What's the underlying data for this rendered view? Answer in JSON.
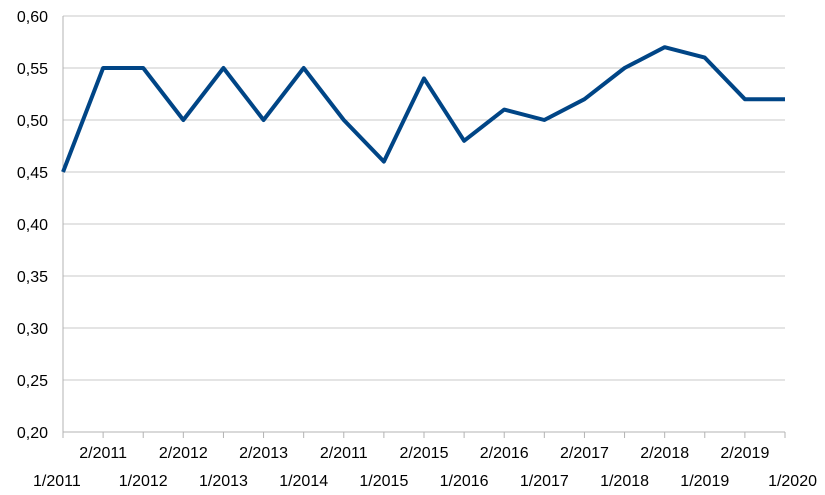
{
  "chart_data": {
    "type": "line",
    "title": "",
    "xlabel": "",
    "ylabel": "",
    "categories": [
      "1/2011",
      "2/2011",
      "1/2012",
      "2/2012",
      "1/2013",
      "2/2013",
      "1/2014",
      "2/2011",
      "1/2015",
      "2/2015",
      "1/2016",
      "2/2016",
      "1/2017",
      "2/2017",
      "1/2018",
      "2/2018",
      "1/2019",
      "2/2019",
      "1/2020"
    ],
    "series": [
      {
        "values": [
          0.45,
          0.55,
          0.55,
          0.5,
          0.55,
          0.5,
          0.55,
          0.5,
          0.46,
          0.54,
          0.48,
          0.51,
          0.5,
          0.52,
          0.55,
          0.57,
          0.56,
          0.52,
          0.52
        ],
        "color": "#004586"
      }
    ],
    "y_ticks": [
      "0,20",
      "0,25",
      "0,30",
      "0,35",
      "0,40",
      "0,45",
      "0,50",
      "0,55",
      "0,60"
    ],
    "y_tick_values": [
      0.2,
      0.25,
      0.3,
      0.35,
      0.4,
      0.45,
      0.5,
      0.55,
      0.6
    ],
    "ylim": [
      0.2,
      0.6
    ],
    "grid": "horizontal",
    "legend": "none",
    "x_labels": "two-row staggered"
  }
}
